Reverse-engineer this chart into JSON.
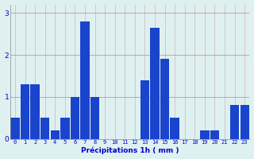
{
  "hours": [
    0,
    1,
    2,
    3,
    4,
    5,
    6,
    7,
    8,
    9,
    10,
    11,
    12,
    13,
    14,
    15,
    16,
    17,
    18,
    19,
    20,
    21,
    22,
    23
  ],
  "values": [
    0.5,
    1.3,
    1.3,
    0.5,
    0.2,
    0.5,
    1.0,
    2.8,
    1.0,
    0.0,
    0.0,
    0.0,
    0.0,
    1.4,
    2.65,
    1.9,
    0.5,
    0.0,
    0.0,
    0.2,
    0.2,
    0.0,
    0.8,
    0.8
  ],
  "bar_color": "#1a44cc",
  "background_color": "#dff0f0",
  "grid_color": "#c8b8b8",
  "xlabel": "Précipitations 1h ( mm )",
  "xlabel_color": "#0000cc",
  "tick_color": "#0000cc",
  "ylim": [
    0,
    3.2
  ],
  "yticks": [
    0,
    1,
    2,
    3
  ],
  "figsize": [
    3.2,
    2.0
  ],
  "dpi": 100
}
